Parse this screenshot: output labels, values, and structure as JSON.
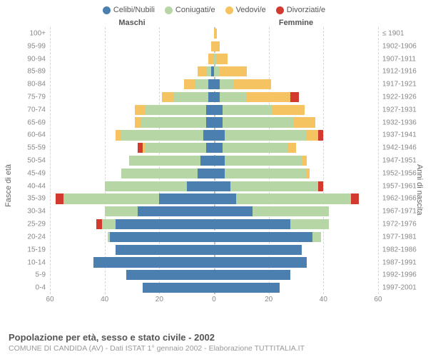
{
  "chart": {
    "type": "population-pyramid",
    "legend": [
      {
        "label": "Celibi/Nubili",
        "color": "#4a7fb0"
      },
      {
        "label": "Coniugati/e",
        "color": "#b6d6a5"
      },
      {
        "label": "Vedovi/e",
        "color": "#f5c361"
      },
      {
        "label": "Divorziati/e",
        "color": "#d33a2f"
      }
    ],
    "header_left": "Maschi",
    "header_right": "Femmine",
    "axis_left_label": "Fasce di età",
    "axis_right_label": "Anni di nascita",
    "x_max": 60,
    "x_ticks": [
      60,
      40,
      20,
      0,
      20,
      40,
      60
    ],
    "grid_color": "#d6d6d6",
    "background_color": "#ffffff",
    "tick_font_color": "#888",
    "bar_gap_ratio": 0.2,
    "rows": [
      {
        "age": "100+",
        "birth": "≤ 1901",
        "m": [
          0,
          0,
          0,
          0
        ],
        "f": [
          0,
          0,
          1,
          0
        ]
      },
      {
        "age": "95-99",
        "birth": "1902-1906",
        "m": [
          0,
          0,
          1,
          0
        ],
        "f": [
          0,
          0,
          2,
          0
        ]
      },
      {
        "age": "90-94",
        "birth": "1907-1911",
        "m": [
          0,
          0,
          2,
          0
        ],
        "f": [
          0,
          1,
          4,
          0
        ]
      },
      {
        "age": "85-89",
        "birth": "1912-1916",
        "m": [
          1,
          2,
          3,
          0
        ],
        "f": [
          0,
          2,
          10,
          0
        ]
      },
      {
        "age": "80-84",
        "birth": "1917-1921",
        "m": [
          2,
          5,
          4,
          0
        ],
        "f": [
          2,
          5,
          14,
          0
        ]
      },
      {
        "age": "75-79",
        "birth": "1922-1926",
        "m": [
          2,
          13,
          4,
          0
        ],
        "f": [
          2,
          10,
          16,
          3
        ]
      },
      {
        "age": "70-74",
        "birth": "1927-1931",
        "m": [
          3,
          22,
          4,
          0
        ],
        "f": [
          3,
          18,
          12,
          0
        ]
      },
      {
        "age": "65-69",
        "birth": "1932-1936",
        "m": [
          3,
          24,
          2,
          0
        ],
        "f": [
          3,
          26,
          8,
          0
        ]
      },
      {
        "age": "60-64",
        "birth": "1937-1941",
        "m": [
          4,
          30,
          2,
          0
        ],
        "f": [
          4,
          30,
          4,
          2
        ]
      },
      {
        "age": "55-59",
        "birth": "1942-1946",
        "m": [
          3,
          22,
          1,
          2
        ],
        "f": [
          3,
          24,
          3,
          0
        ]
      },
      {
        "age": "50-54",
        "birth": "1947-1951",
        "m": [
          5,
          26,
          0,
          0
        ],
        "f": [
          4,
          28,
          2,
          0
        ]
      },
      {
        "age": "45-49",
        "birth": "1952-1956",
        "m": [
          6,
          28,
          0,
          0
        ],
        "f": [
          4,
          30,
          1,
          0
        ]
      },
      {
        "age": "40-44",
        "birth": "1957-1961",
        "m": [
          10,
          30,
          0,
          0
        ],
        "f": [
          6,
          32,
          0,
          2
        ]
      },
      {
        "age": "35-39",
        "birth": "1962-1966",
        "m": [
          20,
          35,
          0,
          3
        ],
        "f": [
          8,
          42,
          0,
          3
        ]
      },
      {
        "age": "30-34",
        "birth": "1967-1971",
        "m": [
          28,
          12,
          0,
          0
        ],
        "f": [
          14,
          28,
          0,
          0
        ]
      },
      {
        "age": "25-29",
        "birth": "1972-1976",
        "m": [
          36,
          5,
          0,
          2
        ],
        "f": [
          28,
          14,
          0,
          0
        ]
      },
      {
        "age": "20-24",
        "birth": "1977-1981",
        "m": [
          38,
          1,
          0,
          0
        ],
        "f": [
          36,
          3,
          0,
          0
        ]
      },
      {
        "age": "15-19",
        "birth": "1982-1986",
        "m": [
          36,
          0,
          0,
          0
        ],
        "f": [
          32,
          0,
          0,
          0
        ]
      },
      {
        "age": "10-14",
        "birth": "1987-1991",
        "m": [
          44,
          0,
          0,
          0
        ],
        "f": [
          34,
          0,
          0,
          0
        ]
      },
      {
        "age": "5-9",
        "birth": "1992-1996",
        "m": [
          32,
          0,
          0,
          0
        ],
        "f": [
          28,
          0,
          0,
          0
        ]
      },
      {
        "age": "0-4",
        "birth": "1997-2001",
        "m": [
          26,
          0,
          0,
          0
        ],
        "f": [
          24,
          0,
          0,
          0
        ]
      }
    ],
    "title": "Popolazione per età, sesso e stato civile - 2002",
    "subtitle": "COMUNE DI CANDIDA (AV) - Dati ISTAT 1° gennaio 2002 - Elaborazione TUTTITALIA.IT"
  }
}
